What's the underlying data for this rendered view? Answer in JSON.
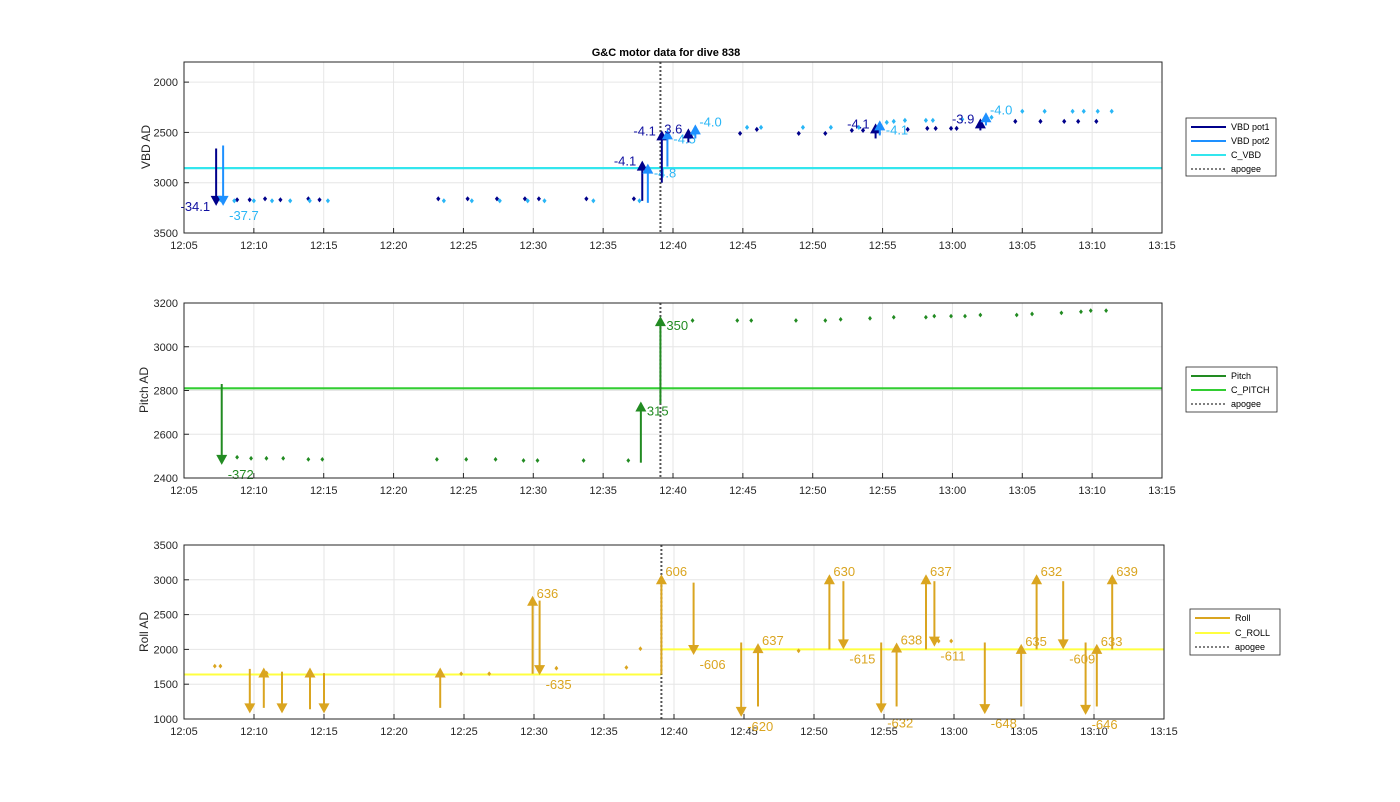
{
  "title": "G&C motor data for dive 838",
  "x_ticks": [
    "12:05",
    "12:10",
    "12:15",
    "12:20",
    "12:25",
    "12:30",
    "12:35",
    "12:40",
    "12:45",
    "12:50",
    "12:55",
    "13:00",
    "13:05",
    "13:10",
    "13:15"
  ],
  "colors": {
    "vbd_pot1": "#00008b",
    "vbd_pot2": "#1e90ff",
    "vbd_pot2_marker": "#29b6f6",
    "c_vbd": "#33e6ee",
    "pitch": "#228b22",
    "c_pitch": "#32cd32",
    "roll": "#daa520",
    "c_roll": "#ffff3f",
    "apogee": "#555555",
    "grid": "#e6e6e6",
    "axis": "#262626"
  },
  "chart_data": [
    {
      "type": "scatter",
      "name": "vbd",
      "ylabel": "VBD AD",
      "ylim": [
        3500,
        1800
      ],
      "y_reversed": true,
      "y_ticks": [
        2000,
        2500,
        3000,
        3500
      ],
      "xlim": [
        725,
        795
      ],
      "grid": true,
      "legend": [
        "VBD pot1",
        "VBD pot2",
        "C_VBD",
        "apogee"
      ],
      "legend_position": "outside-right",
      "apogee_x": 759.1,
      "constant": 2855,
      "pot1_points": [
        [
          727.2,
          3160
        ],
        [
          728.8,
          3170
        ],
        [
          729.7,
          3170
        ],
        [
          730.8,
          3160
        ],
        [
          731.9,
          3170
        ],
        [
          733.9,
          3160
        ],
        [
          734.7,
          3170
        ],
        [
          743.2,
          3160
        ],
        [
          745.3,
          3160
        ],
        [
          747.4,
          3160
        ],
        [
          749.4,
          3160
        ],
        [
          750.4,
          3160
        ],
        [
          753.8,
          3160
        ],
        [
          757.2,
          3160
        ],
        [
          764.8,
          2510
        ],
        [
          766.0,
          2470
        ],
        [
          769.0,
          2510
        ],
        [
          770.9,
          2510
        ],
        [
          772.8,
          2480
        ],
        [
          773.6,
          2480
        ],
        [
          776.8,
          2470
        ],
        [
          778.2,
          2460
        ],
        [
          778.8,
          2460
        ],
        [
          779.9,
          2460
        ],
        [
          780.3,
          2460
        ],
        [
          784.5,
          2390
        ],
        [
          786.3,
          2390
        ],
        [
          788.0,
          2390
        ],
        [
          789.0,
          2390
        ],
        [
          790.3,
          2390
        ]
      ],
      "pot2_points": [
        [
          727.6,
          3170
        ],
        [
          728.6,
          3180
        ],
        [
          730.0,
          3180
        ],
        [
          731.3,
          3180
        ],
        [
          732.6,
          3180
        ],
        [
          734.0,
          3180
        ],
        [
          735.3,
          3180
        ],
        [
          743.6,
          3180
        ],
        [
          745.6,
          3180
        ],
        [
          747.6,
          3180
        ],
        [
          749.6,
          3180
        ],
        [
          750.8,
          3180
        ],
        [
          754.3,
          3180
        ],
        [
          757.6,
          3180
        ],
        [
          765.3,
          2450
        ],
        [
          766.3,
          2450
        ],
        [
          769.3,
          2450
        ],
        [
          771.3,
          2450
        ],
        [
          773.3,
          2450
        ],
        [
          775.3,
          2400
        ],
        [
          775.8,
          2390
        ],
        [
          776.6,
          2380
        ],
        [
          778.1,
          2380
        ],
        [
          778.6,
          2380
        ],
        [
          780.7,
          2370
        ],
        [
          782.8,
          2350
        ],
        [
          785.0,
          2290
        ],
        [
          786.6,
          2290
        ],
        [
          788.6,
          2290
        ],
        [
          789.4,
          2290
        ],
        [
          790.4,
          2290
        ],
        [
          791.4,
          2290
        ]
      ],
      "moves": [
        {
          "x": 727.3,
          "from": 2660,
          "to": 3230,
          "color": "pot1",
          "label": "-34.1",
          "label_side": "left"
        },
        {
          "x": 727.8,
          "from": 2630,
          "to": 3230,
          "color": "pot2",
          "label": "-37.7",
          "label_side": "below-right"
        },
        {
          "x": 757.8,
          "from": 3180,
          "to": 2780,
          "color": "pot1",
          "label": "-4.1",
          "label_side": "left"
        },
        {
          "x": 758.2,
          "from": 3200,
          "to": 2810,
          "color": "pot2",
          "label": "-4.8",
          "label_side": "below-right"
        },
        {
          "x": 759.2,
          "from": 3000,
          "to": 2480,
          "color": "pot1",
          "label": "-4.1",
          "label_side": "left"
        },
        {
          "x": 759.6,
          "from": 2840,
          "to": 2470,
          "color": "pot2",
          "label": "-4.5",
          "label_side": "below-right"
        },
        {
          "x": 761.1,
          "from": 2600,
          "to": 2460,
          "color": "pot1",
          "label": "3.6",
          "label_side": "left"
        },
        {
          "x": 761.6,
          "from": 2560,
          "to": 2420,
          "color": "pot2",
          "label": "-4.0",
          "label_side": "right"
        },
        {
          "x": 774.5,
          "from": 2560,
          "to": 2410,
          "color": "pot1",
          "label": "-4.1",
          "label_side": "left"
        },
        {
          "x": 774.8,
          "from": 2530,
          "to": 2380,
          "color": "pot2",
          "label": "-4.1",
          "label_side": "below-right"
        },
        {
          "x": 782.0,
          "from": 2480,
          "to": 2360,
          "color": "pot1",
          "label": "-3.9",
          "label_side": "left"
        },
        {
          "x": 782.4,
          "from": 2430,
          "to": 2300,
          "color": "pot2",
          "label": "-4.0",
          "label_side": "right"
        }
      ]
    },
    {
      "type": "scatter",
      "name": "pitch",
      "ylabel": "Pitch AD",
      "ylim": [
        2400,
        3200
      ],
      "y_ticks": [
        2400,
        2600,
        2800,
        3000,
        3200
      ],
      "xlim": [
        725,
        795
      ],
      "grid": true,
      "legend": [
        "Pitch",
        "C_PITCH",
        "apogee"
      ],
      "legend_position": "outside-right",
      "apogee_x": 759.1,
      "constant": 2810,
      "points": [
        [
          728.8,
          2495
        ],
        [
          729.8,
          2490
        ],
        [
          730.9,
          2490
        ],
        [
          732.1,
          2490
        ],
        [
          733.9,
          2485
        ],
        [
          734.9,
          2485
        ],
        [
          743.1,
          2485
        ],
        [
          745.2,
          2485
        ],
        [
          747.3,
          2485
        ],
        [
          749.3,
          2480
        ],
        [
          750.3,
          2480
        ],
        [
          753.6,
          2480
        ],
        [
          756.8,
          2480
        ],
        [
          761.4,
          3120
        ],
        [
          764.6,
          3120
        ],
        [
          765.6,
          3120
        ],
        [
          768.8,
          3120
        ],
        [
          770.9,
          3120
        ],
        [
          772.0,
          3125
        ],
        [
          774.1,
          3130
        ],
        [
          775.8,
          3135
        ],
        [
          778.1,
          3135
        ],
        [
          778.7,
          3140
        ],
        [
          779.9,
          3140
        ],
        [
          780.9,
          3140
        ],
        [
          782.0,
          3145
        ],
        [
          784.6,
          3145
        ],
        [
          785.7,
          3150
        ],
        [
          787.8,
          3155
        ],
        [
          789.2,
          3160
        ],
        [
          789.9,
          3165
        ],
        [
          791.0,
          3165
        ]
      ],
      "moves": [
        {
          "x": 727.7,
          "from": 2830,
          "to": 2460,
          "label": "-372",
          "label_side": "below-right"
        },
        {
          "x": 757.7,
          "from": 2470,
          "to": 2750,
          "label": "315",
          "label_side": "below-right"
        },
        {
          "x": 759.1,
          "from": 2740,
          "to": 3140,
          "label": "350",
          "label_side": "below-right"
        }
      ]
    },
    {
      "type": "scatter",
      "name": "roll",
      "ylabel": "Roll AD",
      "ylim": [
        1000,
        3500
      ],
      "y_ticks": [
        1000,
        1500,
        2000,
        2500,
        3000,
        3500
      ],
      "xlim": [
        725,
        795
      ],
      "grid": true,
      "legend": [
        "Roll",
        "C_ROLL",
        "apogee"
      ],
      "legend_position": "outside-right",
      "apogee_x": 759.1,
      "constant_segments": [
        [
          725,
          759.1,
          1640
        ],
        [
          759.1,
          795,
          2000
        ]
      ],
      "points": [
        [
          727.2,
          1760
        ],
        [
          727.6,
          1760
        ],
        [
          730.9,
          1660
        ],
        [
          744.8,
          1650
        ],
        [
          746.8,
          1650
        ],
        [
          751.6,
          1730
        ],
        [
          756.6,
          1740
        ],
        [
          757.6,
          2010
        ],
        [
          768.9,
          1980
        ],
        [
          778.9,
          2120
        ],
        [
          779.8,
          2120
        ]
      ],
      "moves": [
        {
          "x": 729.7,
          "from": 1720,
          "to": 1080,
          "label": "",
          "label_side": "below-right"
        },
        {
          "x": 730.7,
          "from": 1160,
          "to": 1740,
          "label": "",
          "label_side": "right"
        },
        {
          "x": 732.0,
          "from": 1680,
          "to": 1080,
          "label": "",
          "label_side": "below-right"
        },
        {
          "x": 734.0,
          "from": 1140,
          "to": 1740,
          "label": "",
          "label_side": "right"
        },
        {
          "x": 735.0,
          "from": 1660,
          "to": 1080,
          "label": "",
          "label_side": "below-right"
        },
        {
          "x": 743.3,
          "from": 1160,
          "to": 1740,
          "label": "",
          "label_side": "right"
        },
        {
          "x": 749.9,
          "from": 1650,
          "to": 2770,
          "label": "636",
          "label_side": "right"
        },
        {
          "x": 750.4,
          "from": 2700,
          "to": 1630,
          "label": "-635",
          "label_side": "below-right"
        },
        {
          "x": 759.1,
          "from": 1640,
          "to": 3080,
          "label": "606",
          "label_side": "right"
        },
        {
          "x": 761.4,
          "from": 2960,
          "to": 1920,
          "label": "-606",
          "label_side": "below-right"
        },
        {
          "x": 764.8,
          "from": 2100,
          "to": 1030,
          "label": "-620",
          "label_side": "below-right"
        },
        {
          "x": 766.0,
          "from": 1180,
          "to": 2090,
          "label": "637",
          "label_side": "right"
        },
        {
          "x": 771.1,
          "from": 2000,
          "to": 3080,
          "label": "630",
          "label_side": "right"
        },
        {
          "x": 772.1,
          "from": 2980,
          "to": 2000,
          "label": "-615",
          "label_side": "below-right"
        },
        {
          "x": 774.8,
          "from": 2100,
          "to": 1080,
          "label": "-632",
          "label_side": "below-right"
        },
        {
          "x": 775.9,
          "from": 1180,
          "to": 2100,
          "label": "638",
          "label_side": "right"
        },
        {
          "x": 778.0,
          "from": 2000,
          "to": 3080,
          "label": "637",
          "label_side": "right"
        },
        {
          "x": 778.6,
          "from": 2980,
          "to": 2040,
          "label": "-611",
          "label_side": "below-right"
        },
        {
          "x": 782.2,
          "from": 2100,
          "to": 1070,
          "label": "-648",
          "label_side": "below-right"
        },
        {
          "x": 784.8,
          "from": 1180,
          "to": 2080,
          "label": "635",
          "label_side": "right"
        },
        {
          "x": 785.9,
          "from": 2000,
          "to": 3080,
          "label": "632",
          "label_side": "right"
        },
        {
          "x": 787.8,
          "from": 2980,
          "to": 2000,
          "label": "-609",
          "label_side": "below-right"
        },
        {
          "x": 789.4,
          "from": 2100,
          "to": 1060,
          "label": "-646",
          "label_side": "below-right"
        },
        {
          "x": 790.2,
          "from": 1180,
          "to": 2080,
          "label": "633",
          "label_side": "right"
        },
        {
          "x": 791.3,
          "from": 2000,
          "to": 3080,
          "label": "639",
          "label_side": "right"
        }
      ]
    }
  ]
}
